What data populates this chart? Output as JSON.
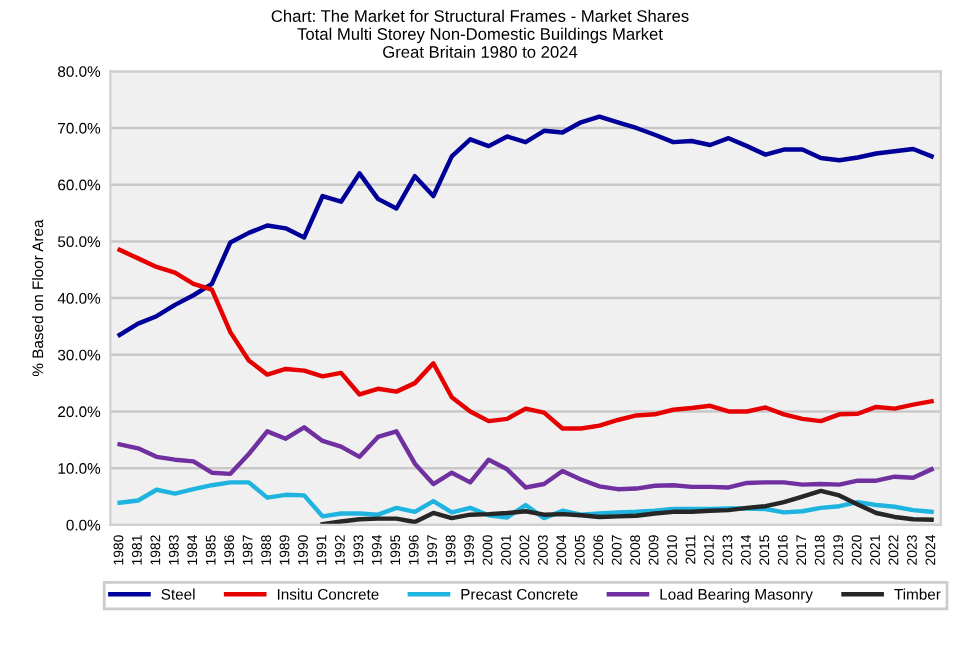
{
  "chart_data": {
    "type": "line",
    "title": "Chart: The Market for Structural Frames - Market Shares\nTotal Multi Storey Non-Domestic Buildings Market\nGreat Britain 1980 to 2024",
    "ylabel": "% Based on Floor Area",
    "categories": [
      "1980",
      "1981",
      "1982",
      "1983",
      "1984",
      "1985",
      "1986",
      "1987",
      "1988",
      "1989",
      "1990",
      "1991",
      "1992",
      "1993",
      "1994",
      "1995",
      "1996",
      "1997",
      "1998",
      "1999",
      "2000",
      "2001",
      "2002",
      "2003",
      "2004",
      "2005",
      "2006",
      "2007",
      "2008",
      "2009",
      "2010",
      "2011",
      "2012",
      "2013",
      "2014",
      "2015",
      "2016",
      "2017",
      "2018",
      "2019",
      "2020",
      "2021",
      "2022",
      "2023",
      "2024"
    ],
    "series": [
      {
        "name": "Steel",
        "color": "#000099",
        "values": [
          33.5,
          35.5,
          36.8,
          38.8,
          40.5,
          42.5,
          49.8,
          51.5,
          52.8,
          52.3,
          50.7,
          58,
          57,
          62,
          57.5,
          55.8,
          61.5,
          58,
          65,
          68,
          66.8,
          68.5,
          67.5,
          69.5,
          69.2,
          71,
          72,
          71,
          70,
          68.8,
          67.5,
          67.7,
          67,
          68.2,
          66.8,
          65.3,
          66.2,
          66.2,
          64.7,
          64.3,
          64.8,
          65.5,
          65.9,
          66.3,
          65
        ]
      },
      {
        "name": "Insitu Concrete",
        "color": "#e60000",
        "values": [
          48.5,
          47,
          45.5,
          44.5,
          42.5,
          41.5,
          34,
          29,
          26.5,
          27.5,
          27.2,
          26.2,
          26.8,
          23,
          24,
          23.5,
          25,
          28.5,
          22.5,
          20,
          18.3,
          18.7,
          20.5,
          19.8,
          17,
          17,
          17.5,
          18.5,
          19.3,
          19.5,
          20.3,
          20.6,
          21,
          20,
          20,
          20.7,
          19.5,
          18.7,
          18.3,
          19.5,
          19.6,
          20.8,
          20.5,
          21.2,
          21.8
        ]
      },
      {
        "name": "Precast Concrete",
        "color": "#1fb4e0",
        "values": [
          3.9,
          4.3,
          6.2,
          5.5,
          6.3,
          7,
          7.5,
          7.5,
          4.8,
          5.3,
          5.2,
          1.5,
          2,
          2,
          1.8,
          3,
          2.3,
          4.2,
          2.2,
          3,
          1.7,
          1.3,
          3.5,
          1.2,
          2.5,
          1.8,
          2,
          2.2,
          2.3,
          2.5,
          2.8,
          2.8,
          2.8,
          2.9,
          2.9,
          2.8,
          2.2,
          2.4,
          3,
          3.3,
          4,
          3.5,
          3.2,
          2.6,
          2.3
        ]
      },
      {
        "name": "Load Bearing Masonry",
        "color": "#7030a0",
        "values": [
          14.2,
          13.5,
          12,
          11.5,
          11.2,
          9.2,
          9,
          12.5,
          16.5,
          15.2,
          17.2,
          14.8,
          13.8,
          12,
          15.5,
          16.5,
          10.8,
          7.2,
          9.2,
          7.5,
          11.5,
          9.8,
          6.6,
          7.2,
          9.5,
          8,
          6.8,
          6.3,
          6.4,
          6.9,
          7,
          6.7,
          6.7,
          6.6,
          7.4,
          7.5,
          7.5,
          7.1,
          7.2,
          7.1,
          7.8,
          7.8,
          8.5,
          8.3,
          9.8
        ]
      },
      {
        "name": "Timber",
        "color": "#262626",
        "values": [
          null,
          null,
          null,
          null,
          null,
          null,
          null,
          null,
          null,
          null,
          null,
          0.1,
          0.6,
          1.0,
          1.1,
          1.1,
          0.5,
          2.1,
          1.2,
          1.8,
          1.9,
          2.1,
          2.4,
          1.8,
          1.9,
          1.7,
          1.4,
          1.5,
          1.6,
          2.0,
          2.3,
          2.3,
          2.5,
          2.6,
          3.0,
          3.3,
          4.0,
          5.0,
          6.0,
          5.2,
          3.6,
          2.1,
          1.4,
          1.0,
          0.9
        ]
      }
    ],
    "ylim": [
      0,
      80
    ],
    "yticks": [
      {
        "value": 0,
        "label": "0.0%"
      },
      {
        "value": 10,
        "label": "10.0%"
      },
      {
        "value": 20,
        "label": "20.0%"
      },
      {
        "value": 30,
        "label": "30.0%"
      },
      {
        "value": 40,
        "label": "40.0%"
      },
      {
        "value": 50,
        "label": "50.0%"
      },
      {
        "value": 60,
        "label": "60.0%"
      },
      {
        "value": 70,
        "label": "70.0%"
      },
      {
        "value": 80,
        "label": "80.0%"
      }
    ],
    "grid": "y",
    "legend": "bottom",
    "marker": "none",
    "line_style": "solid"
  }
}
